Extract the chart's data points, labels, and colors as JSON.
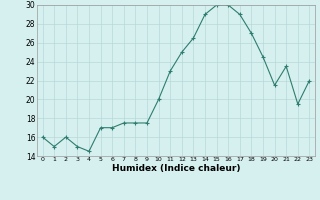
{
  "x": [
    0,
    1,
    2,
    3,
    4,
    5,
    6,
    7,
    8,
    9,
    10,
    11,
    12,
    13,
    14,
    15,
    16,
    17,
    18,
    19,
    20,
    21,
    22,
    23
  ],
  "y": [
    16,
    15,
    16,
    15,
    14.5,
    17,
    17,
    17.5,
    17.5,
    17.5,
    20,
    23,
    25,
    26.5,
    29,
    30,
    30,
    29,
    27,
    24.5,
    21.5,
    23.5,
    19.5,
    22
  ],
  "xlabel": "Humidex (Indice chaleur)",
  "ylim": [
    14,
    30
  ],
  "yticks": [
    14,
    16,
    18,
    20,
    22,
    24,
    26,
    28,
    30
  ],
  "xticks": [
    0,
    1,
    2,
    3,
    4,
    5,
    6,
    7,
    8,
    9,
    10,
    11,
    12,
    13,
    14,
    15,
    16,
    17,
    18,
    19,
    20,
    21,
    22,
    23
  ],
  "line_color": "#2e7d6e",
  "marker_color": "#2e7d6e",
  "bg_color": "#d6f0f0",
  "grid_color": "#b8d8d8"
}
